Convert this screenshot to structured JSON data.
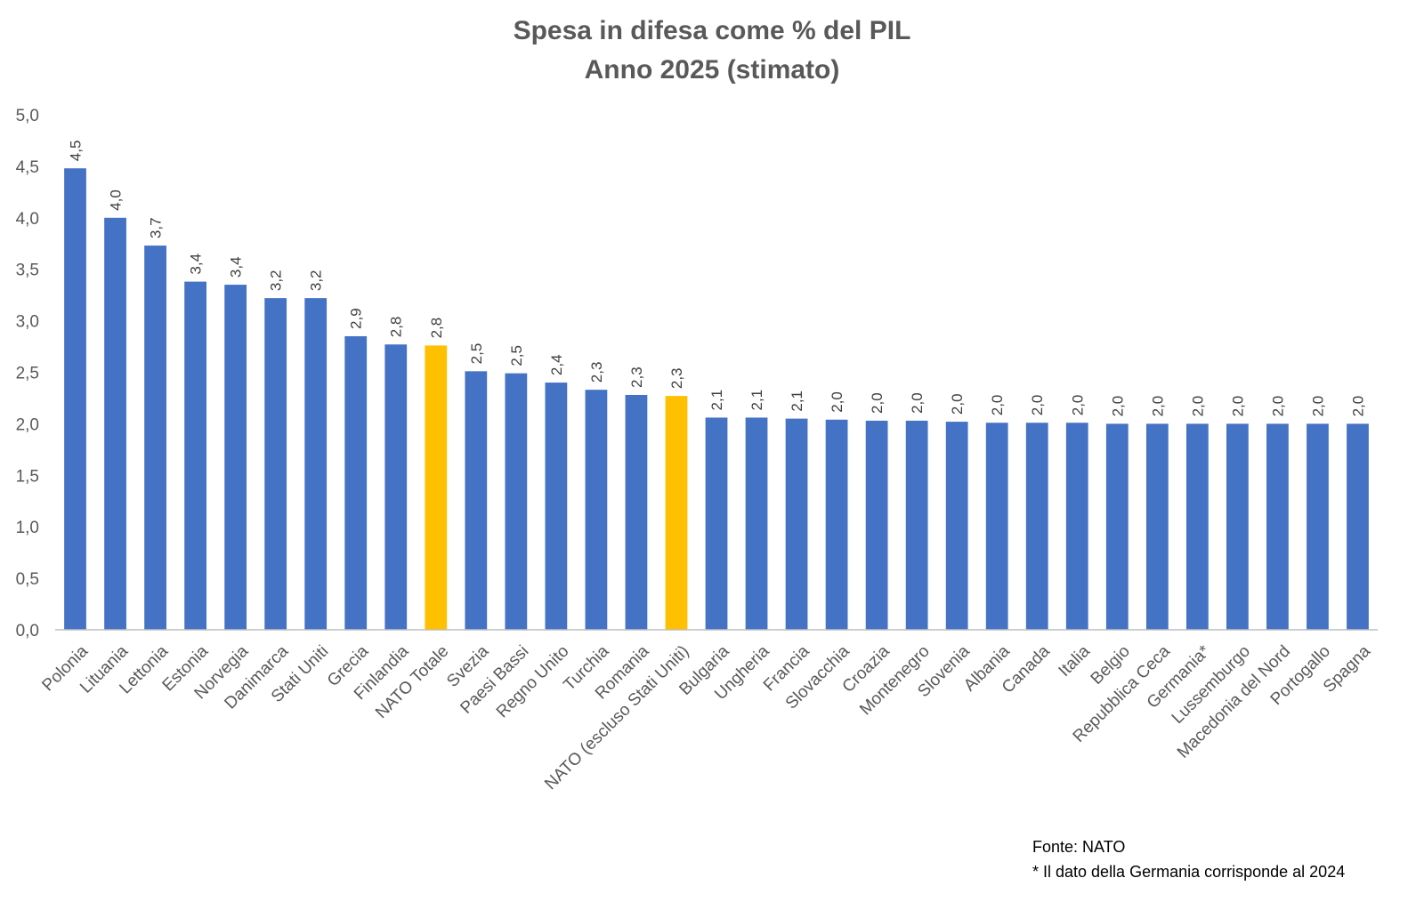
{
  "chart_data": {
    "type": "bar",
    "title": "Spesa in difesa come % del PIL",
    "subtitle": "Anno 2025 (stimato)",
    "xlabel": "",
    "ylabel": "",
    "ylim": [
      0,
      5
    ],
    "yticks": [
      0,
      0.5,
      1,
      1.5,
      2,
      2.5,
      3,
      3.5,
      4,
      4.5,
      5
    ],
    "ytick_labels": [
      "0,0",
      "0,5",
      "1,0",
      "1,5",
      "2,0",
      "2,5",
      "3,0",
      "3,5",
      "4,0",
      "4,5",
      "5,0"
    ],
    "grid": false,
    "legend": "none",
    "categories": [
      "Polonia",
      "Lituania",
      "Lettonia",
      "Estonia",
      "Norvegia",
      "Danimarca",
      "Stati Uniti",
      "Grecia",
      "Finlandia",
      "NATO Totale",
      "Svezia",
      "Paesi Bassi",
      "Regno Unito",
      "Turchia",
      "Romania",
      "NATO (escluso Stati Uniti)",
      "Bulgaria",
      "Ungheria",
      "Francia",
      "Slovacchia",
      "Croazia",
      "Montenegro",
      "Slovenia",
      "Albania",
      "Canada",
      "Italia",
      "Belgio",
      "Repubblica Ceca",
      "Germania*",
      "Lussemburgo",
      "Macedonia del Nord",
      "Portogallo",
      "Spagna"
    ],
    "values": [
      4.48,
      4.0,
      3.73,
      3.38,
      3.35,
      3.22,
      3.22,
      2.85,
      2.77,
      2.76,
      2.51,
      2.49,
      2.4,
      2.33,
      2.28,
      2.27,
      2.06,
      2.06,
      2.05,
      2.04,
      2.03,
      2.03,
      2.02,
      2.01,
      2.01,
      2.01,
      2.0,
      2.0,
      2.0,
      2.0,
      2.0,
      2.0,
      2.0
    ],
    "value_labels": [
      "4,5",
      "4,0",
      "3,7",
      "3,4",
      "3,4",
      "3,2",
      "3,2",
      "2,9",
      "2,8",
      "2,8",
      "2,5",
      "2,5",
      "2,4",
      "2,3",
      "2,3",
      "2,3",
      "2,1",
      "2,1",
      "2,1",
      "2,0",
      "2,0",
      "2,0",
      "2,0",
      "2,0",
      "2,0",
      "2,0",
      "2,0",
      "2,0",
      "2,0",
      "2,0",
      "2,0",
      "2,0",
      "2,0"
    ],
    "highlight": [
      "NATO Totale",
      "NATO (escluso Stati Uniti)"
    ]
  },
  "colors": {
    "bar": "#4472C4",
    "highlight": "#FFC000",
    "axis": "#BFBFBF",
    "text": "#595959",
    "data_label": "#404040"
  },
  "footnotes": {
    "source": "Fonte: NATO",
    "note": "* Il dato della Germania corrisponde al 2024"
  }
}
